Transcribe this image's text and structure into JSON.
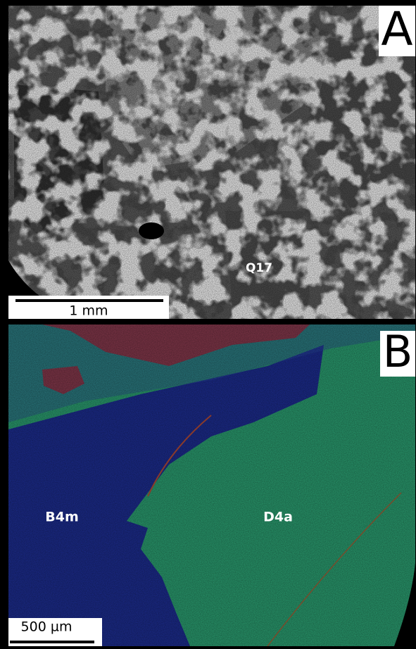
{
  "panels": [
    {
      "label": "A",
      "scale_bar": "1 mm",
      "annotations": [
        "Q17"
      ]
    },
    {
      "label": "B",
      "scale_bar": "500 µm",
      "annotations": [
        "B4m",
        "D4a"
      ]
    }
  ]
}
